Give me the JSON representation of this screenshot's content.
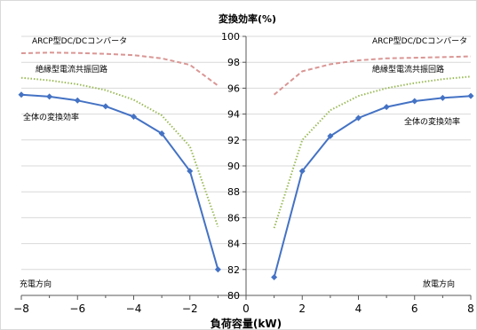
{
  "chart_data": {
    "type": "line",
    "ytitle": "変換効率(%)",
    "xtitle": "負荷容量(kW)",
    "xlim": [
      -8,
      8
    ],
    "ylim": [
      80,
      100
    ],
    "xticks": [
      -8,
      -6,
      -4,
      -2,
      0,
      2,
      4,
      6,
      8
    ],
    "yticks": [
      80,
      82,
      84,
      86,
      88,
      90,
      92,
      94,
      96,
      98,
      100
    ],
    "xticklabels": [
      "−8",
      "−6",
      "−4",
      "−2",
      "0",
      "2",
      "4",
      "6",
      "8"
    ],
    "grid": "horizontal",
    "colors": {
      "total": "#4472c4",
      "resonant": "#9bbb59",
      "arcp": "#d99694",
      "grid": "#d9d9d9",
      "axis": "#595959"
    },
    "labels": {
      "arcp_left": "ARCP型DC/DCコンバータ",
      "arcp_right": "ARCP型DC/DCコンバータ",
      "resonant_left": "絶縁型電流共振回路",
      "resonant_right": "絶縁型電流共振回路",
      "total_left": "全体の変換効率",
      "total_right": "全体の変換効率",
      "charge_dir": "充電方向",
      "discharge_dir": "放電方向"
    },
    "series": [
      {
        "key": "total",
        "style": "solid-diamond",
        "left": {
          "x": [
            -8,
            -7,
            -6,
            -5,
            -4,
            -3,
            -2,
            -1
          ],
          "y": [
            95.5,
            95.35,
            95.05,
            94.6,
            93.8,
            92.5,
            89.6,
            82.0
          ]
        },
        "right": {
          "x": [
            1,
            2,
            3,
            4,
            5,
            6,
            7,
            8
          ],
          "y": [
            81.4,
            89.6,
            92.3,
            93.7,
            94.55,
            95.0,
            95.25,
            95.4
          ]
        }
      },
      {
        "key": "resonant",
        "style": "dotted",
        "left": {
          "x": [
            -8,
            -7,
            -6,
            -5,
            -4,
            -3,
            -2,
            -1
          ],
          "y": [
            96.8,
            96.6,
            96.3,
            95.85,
            95.1,
            93.9,
            91.5,
            85.3
          ]
        },
        "right": {
          "x": [
            1,
            2,
            3,
            4,
            5,
            6,
            7,
            8
          ],
          "y": [
            85.2,
            92.0,
            94.3,
            95.4,
            96.0,
            96.4,
            96.7,
            96.9
          ]
        }
      },
      {
        "key": "arcp",
        "style": "dashed",
        "left": {
          "x": [
            -8,
            -7,
            -6,
            -5,
            -4,
            -3,
            -2,
            -1
          ],
          "y": [
            98.7,
            98.75,
            98.72,
            98.65,
            98.55,
            98.3,
            97.8,
            96.2
          ]
        },
        "right": {
          "x": [
            1,
            2,
            3,
            4,
            5,
            6,
            7,
            8
          ],
          "y": [
            95.5,
            97.3,
            97.85,
            98.15,
            98.3,
            98.35,
            98.4,
            98.45
          ]
        }
      }
    ]
  }
}
